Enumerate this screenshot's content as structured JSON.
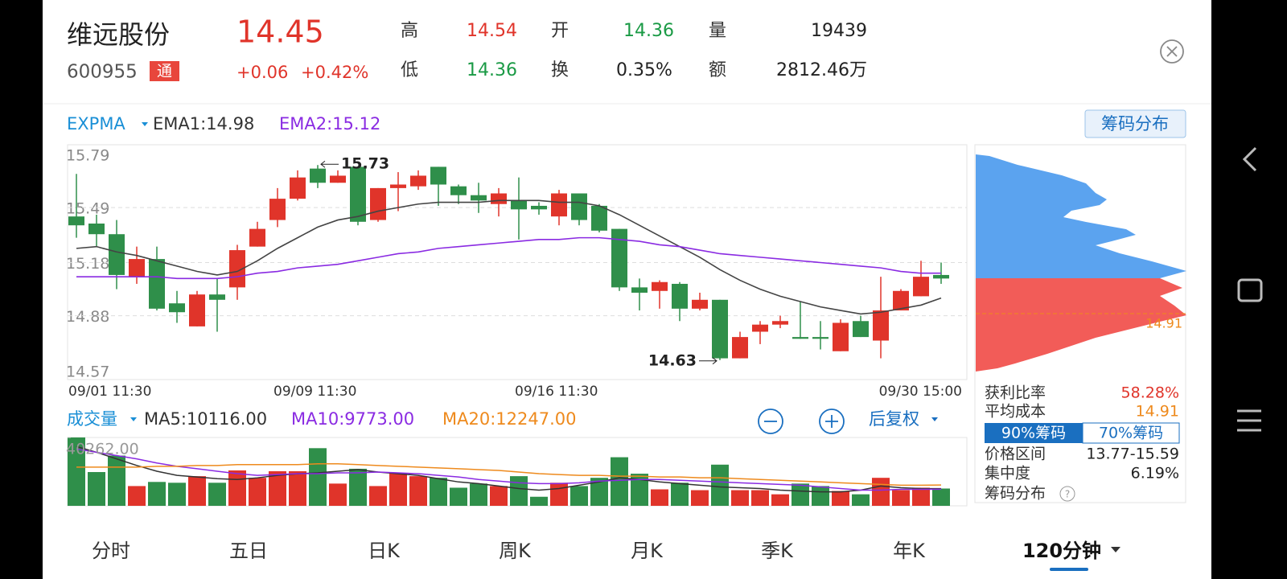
{
  "header": {
    "name": "维远股份",
    "code": "600955",
    "badge": "通",
    "price": "14.45",
    "change": "+0.06",
    "change_pct": "+0.42%",
    "stats": [
      [
        "高",
        "14.54"
      ],
      [
        "开",
        "14.36"
      ],
      [
        "量",
        "19439"
      ],
      [
        "低",
        "14.36"
      ],
      [
        "换",
        "0.35%"
      ],
      [
        "额",
        "2812.46万"
      ]
    ]
  },
  "indicators": {
    "main": "EXPMA",
    "ema1": "EMA1:14.98",
    "ema2": "EMA2:15.12",
    "chip_button": "筹码分布",
    "volume": "成交量",
    "ma5": "MA5:10116.00",
    "ma10": "MA10:9773.00",
    "ma20": "MA20:12247.00",
    "adjust": "后复权"
  },
  "chart_data": [
    {
      "type": "candlestick",
      "up_color": "#e0342a",
      "down_color": "#2f8f4a",
      "grid": true,
      "categories": [
        "09/01 11:30",
        null,
        null,
        null,
        null,
        null,
        null,
        null,
        null,
        null,
        "09/09 11:30",
        null,
        null,
        null,
        null,
        null,
        null,
        null,
        null,
        null,
        null,
        null,
        "09/16 11:30",
        null,
        null,
        null,
        null,
        null,
        null,
        null,
        null,
        null,
        null,
        null,
        null,
        null,
        null,
        null,
        null,
        null,
        null,
        null,
        null,
        "09/30 15:00"
      ],
      "open": [
        15.44,
        15.4,
        15.34,
        15.1,
        15.2,
        14.95,
        14.82,
        15.0,
        15.04,
        15.27,
        15.42,
        15.54,
        15.71,
        15.63,
        15.72,
        15.42,
        15.6,
        15.61,
        15.72,
        15.61,
        15.56,
        15.51,
        15.53,
        15.5,
        15.44,
        15.57,
        15.5,
        15.37,
        15.04,
        15.02,
        15.06,
        14.92,
        14.97,
        14.64,
        14.79,
        14.83,
        14.76,
        14.76,
        14.68,
        14.85,
        14.74,
        14.91,
        14.99,
        15.11
      ],
      "high": [
        15.68,
        15.45,
        15.42,
        15.27,
        15.27,
        15.02,
        15.02,
        15.09,
        15.28,
        15.41,
        15.6,
        15.7,
        15.73,
        15.7,
        15.72,
        15.6,
        15.69,
        15.7,
        15.72,
        15.62,
        15.63,
        15.6,
        15.66,
        15.52,
        15.59,
        15.57,
        15.51,
        15.37,
        15.09,
        15.08,
        15.07,
        15.01,
        14.97,
        14.79,
        14.85,
        14.88,
        14.96,
        14.85,
        14.86,
        14.88,
        15.1,
        15.03,
        15.19,
        15.18
      ],
      "low": [
        15.32,
        15.27,
        15.03,
        15.06,
        14.91,
        14.84,
        14.82,
        14.79,
        14.97,
        15.27,
        15.38,
        15.53,
        15.6,
        15.63,
        15.39,
        15.41,
        15.47,
        15.59,
        15.5,
        15.51,
        15.46,
        15.44,
        15.31,
        15.45,
        15.39,
        15.39,
        15.35,
        15.02,
        14.91,
        14.92,
        14.85,
        14.91,
        14.63,
        14.64,
        14.72,
        14.81,
        14.75,
        14.69,
        14.68,
        14.76,
        14.64,
        14.91,
        14.99,
        15.06
      ],
      "close": [
        15.39,
        15.34,
        15.11,
        15.2,
        14.92,
        14.9,
        15.0,
        14.97,
        15.25,
        15.37,
        15.54,
        15.66,
        15.63,
        15.67,
        15.41,
        15.6,
        15.62,
        15.67,
        15.62,
        15.56,
        15.53,
        15.57,
        15.48,
        15.48,
        15.57,
        15.42,
        15.36,
        15.04,
        15.01,
        15.07,
        14.92,
        14.97,
        14.64,
        14.76,
        14.83,
        14.85,
        14.75,
        14.75,
        14.84,
        14.76,
        14.91,
        15.02,
        15.1,
        15.09
      ],
      "lines": [
        {
          "color": "#444444",
          "values": [
            15.26,
            15.27,
            15.24,
            15.22,
            15.19,
            15.16,
            15.13,
            15.11,
            15.13,
            15.19,
            15.26,
            15.32,
            15.38,
            15.42,
            15.44,
            15.47,
            15.49,
            15.51,
            15.52,
            15.52,
            15.52,
            15.53,
            15.53,
            15.53,
            15.52,
            15.52,
            15.5,
            15.45,
            15.39,
            15.33,
            15.27,
            15.21,
            15.14,
            15.08,
            15.03,
            14.99,
            14.96,
            14.93,
            14.91,
            14.89,
            14.9,
            14.92,
            14.94,
            14.98
          ]
        },
        {
          "color": "#8a2be2",
          "values": [
            15.1,
            15.1,
            15.1,
            15.1,
            15.1,
            15.09,
            15.09,
            15.09,
            15.1,
            15.12,
            15.13,
            15.15,
            15.16,
            15.17,
            15.19,
            15.21,
            15.23,
            15.24,
            15.26,
            15.27,
            15.28,
            15.29,
            15.3,
            15.31,
            15.31,
            15.32,
            15.32,
            15.31,
            15.3,
            15.28,
            15.27,
            15.25,
            15.23,
            15.22,
            15.21,
            15.2,
            15.19,
            15.18,
            15.17,
            15.16,
            15.15,
            15.13,
            15.12,
            15.12
          ]
        }
      ],
      "ylim": [
        14.57,
        15.79
      ],
      "yticks": [
        15.79,
        15.49,
        15.18,
        14.88,
        14.57
      ],
      "high_label": "15.73",
      "low_label": "14.63"
    },
    {
      "type": "bar",
      "values": [
        40262,
        19888,
        29590,
        11642,
        14068,
        13582,
        17463,
        13582,
        20858,
        16493,
        20373,
        20373,
        33956,
        13097,
        21828,
        11642,
        19403,
        17463,
        16493,
        10672,
        13097,
        11642,
        17463,
        5336,
        13582,
        11642,
        16493,
        28620,
        18918,
        9702,
        13582,
        9217,
        24254,
        9217,
        9217,
        6791,
        13097,
        11642,
        8731,
        6791,
        16493,
        9217,
        10672,
        10187
      ],
      "lines": [
        {
          "color": "#333333",
          "values": [
            34920,
            31525,
            27645,
            23765,
            20370,
            17945,
            16975,
            16005,
            15520,
            16490,
            17945,
            18915,
            19400,
            20370,
            21340,
            19885,
            18915,
            17945,
            16005,
            14065,
            13095,
            11640,
            10185,
            9215,
            10185,
            12125,
            14065,
            16490,
            15520,
            14065,
            13095,
            12125,
            11155,
            10670,
            10185,
            9215,
            8730,
            8245,
            8245,
            9215,
            11640,
            10670,
            10185,
            10116
          ]
        },
        {
          "color": "#8a2be2",
          "values": [
            33470,
            31530,
            29590,
            27650,
            25220,
            23280,
            21830,
            20370,
            18920,
            17950,
            18430,
            18920,
            18920,
            19400,
            19400,
            19890,
            19400,
            18920,
            17950,
            16980,
            15520,
            14550,
            13580,
            13100,
            13100,
            13580,
            14550,
            15040,
            15520,
            15520,
            15040,
            14550,
            14070,
            13580,
            13100,
            12610,
            12130,
            11160,
            10190,
            9220,
            9220,
            9700,
            9700,
            9773
          ]
        },
        {
          "color": "#ee8a1d",
          "values": [
            22800,
            22800,
            22800,
            22800,
            23280,
            23280,
            23770,
            23770,
            24260,
            24260,
            24260,
            24260,
            24740,
            24740,
            24260,
            23770,
            23280,
            22800,
            22310,
            21830,
            21340,
            20860,
            19890,
            18920,
            18430,
            17950,
            17950,
            17460,
            17460,
            16980,
            16980,
            16490,
            16490,
            16010,
            15520,
            15040,
            14550,
            14070,
            13580,
            13100,
            12610,
            12130,
            12130,
            12247
          ]
        }
      ],
      "ylim": [
        0,
        40262
      ],
      "yticks": [
        {
          "value": 40262,
          "label": "40262.00"
        }
      ]
    }
  ],
  "chip_panel": {
    "profit_ratio": [
      "获利比率",
      "58.28%"
    ],
    "avg_cost": [
      "平均成本",
      "14.91"
    ],
    "tabs": [
      "90%筹码",
      "70%筹码"
    ],
    "price_range": [
      "价格区间",
      "13.77-15.59"
    ],
    "concentration": [
      "集中度",
      "6.19%"
    ],
    "footer": "筹码分布"
  },
  "tabs": [
    "分时",
    "五日",
    "日K",
    "周K",
    "月K",
    "季K",
    "年K",
    "120分钟"
  ]
}
